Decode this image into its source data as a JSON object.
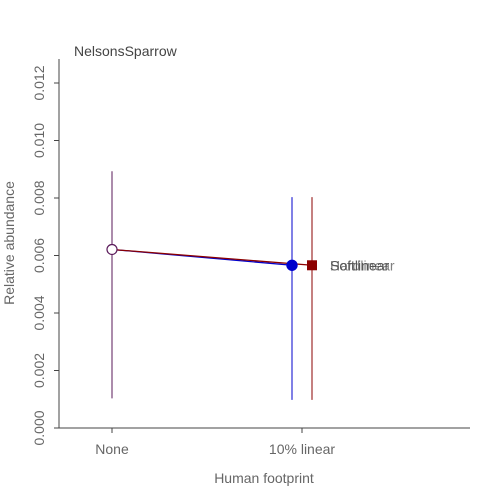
{
  "chart_data": {
    "type": "scatter",
    "title": "NelsonsSparrow",
    "xlabel": "Human footprint",
    "ylabel": "Relative abundance",
    "categories": [
      "None",
      "10% linear"
    ],
    "ylim": [
      0,
      0.0128
    ],
    "yticks": [
      "0.000",
      "0.002",
      "0.004",
      "0.006",
      "0.008",
      "0.010",
      "0.012"
    ],
    "ytick_values": [
      0,
      0.002,
      0.004,
      0.006,
      0.008,
      0.01,
      0.012
    ],
    "grid": false,
    "baseline": {
      "category": "None",
      "value": 0.00621,
      "lower": 0.00103,
      "upper": 0.00893
    },
    "series": [
      {
        "name": "Softlinear",
        "color": "#0000cc",
        "marker": "circle",
        "category": "10% linear",
        "value": 0.00566,
        "lower": 0.00098,
        "upper": 0.00803
      },
      {
        "name": "Hardlinear",
        "color": "#8b0000",
        "marker": "square",
        "category": "10% linear",
        "value": 0.00566,
        "lower": 0.00098,
        "upper": 0.00803
      }
    ],
    "label_color": "#7a2a7a"
  }
}
